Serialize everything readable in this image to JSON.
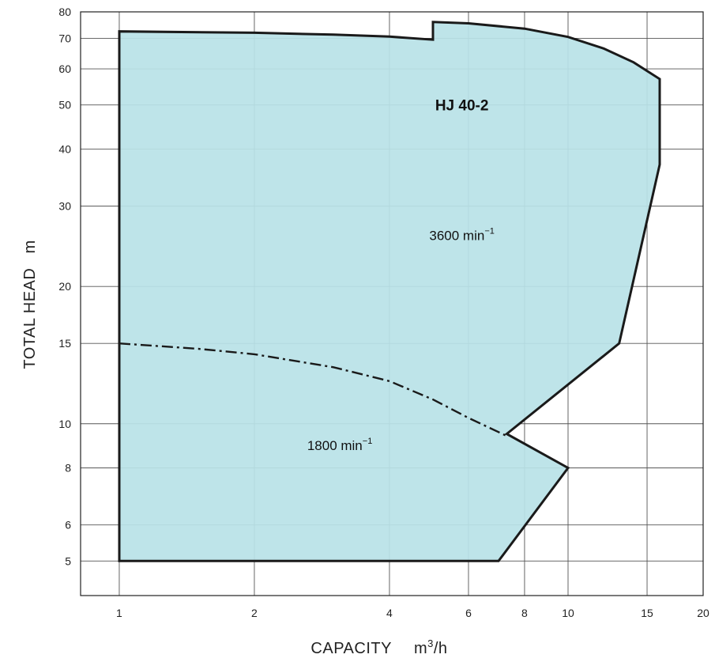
{
  "chart_data": {
    "type": "area",
    "title": "",
    "xlabel": "CAPACITY",
    "xunit_base": "m",
    "xunit_exp": "3",
    "xunit_tail": "/h",
    "ylabel": "TOTAL HEAD   m",
    "x_scale": "log",
    "y_scale": "log",
    "xlim": [
      0.82,
      20
    ],
    "ylim": [
      4.2,
      80
    ],
    "grid": true,
    "x_ticks": [
      {
        "value": 1,
        "label": "1"
      },
      {
        "value": 2,
        "label": "2"
      },
      {
        "value": 4,
        "label": "4"
      },
      {
        "value": 6,
        "label": "6"
      },
      {
        "value": 8,
        "label": "8"
      },
      {
        "value": 10,
        "label": "10"
      },
      {
        "value": 15,
        "label": "15"
      },
      {
        "value": 20,
        "label": "20"
      }
    ],
    "y_ticks": [
      {
        "value": 5,
        "label": "5"
      },
      {
        "value": 6,
        "label": "6"
      },
      {
        "value": 8,
        "label": "8"
      },
      {
        "value": 10,
        "label": "10"
      },
      {
        "value": 15,
        "label": "15"
      },
      {
        "value": 20,
        "label": "20"
      },
      {
        "value": 30,
        "label": "30"
      },
      {
        "value": 40,
        "label": "40"
      },
      {
        "value": 50,
        "label": "50"
      },
      {
        "value": 60,
        "label": "60"
      },
      {
        "value": 70,
        "label": "70"
      },
      {
        "value": 80,
        "label": "80"
      }
    ],
    "fill_color": "#b9e2e7",
    "outline_color": "#1a1a1a",
    "grid_color": "#555555",
    "operating_range": [
      {
        "x": 1,
        "y": 5
      },
      {
        "x": 1,
        "y": 72.5
      },
      {
        "x": 2,
        "y": 72
      },
      {
        "x": 3,
        "y": 71.3
      },
      {
        "x": 4,
        "y": 70.6
      },
      {
        "x": 5,
        "y": 69.5
      },
      {
        "x": 5,
        "y": 76
      },
      {
        "x": 6,
        "y": 75.5
      },
      {
        "x": 8,
        "y": 73.5
      },
      {
        "x": 10,
        "y": 70.5
      },
      {
        "x": 12,
        "y": 66.5
      },
      {
        "x": 14,
        "y": 62
      },
      {
        "x": 16,
        "y": 57
      },
      {
        "x": 16,
        "y": 37
      },
      {
        "x": 13,
        "y": 15
      },
      {
        "x": 7.3,
        "y": 9.5
      },
      {
        "x": 10,
        "y": 8
      },
      {
        "x": 7,
        "y": 5
      }
    ],
    "divider_curve": [
      {
        "x": 1,
        "y": 15
      },
      {
        "x": 1.5,
        "y": 14.6
      },
      {
        "x": 2,
        "y": 14.2
      },
      {
        "x": 3,
        "y": 13.3
      },
      {
        "x": 4,
        "y": 12.4
      },
      {
        "x": 5,
        "y": 11.3
      },
      {
        "x": 6,
        "y": 10.3
      },
      {
        "x": 7.3,
        "y": 9.4
      }
    ],
    "annotations": [
      {
        "text": "HJ 40-2",
        "style": "bold",
        "x": 5.8,
        "y": 50
      },
      {
        "text": "3600 min",
        "sup": "−1",
        "x": 5.8,
        "y": 26
      },
      {
        "text": "1800 min",
        "sup": "−1",
        "x": 3.1,
        "y": 9
      }
    ]
  }
}
